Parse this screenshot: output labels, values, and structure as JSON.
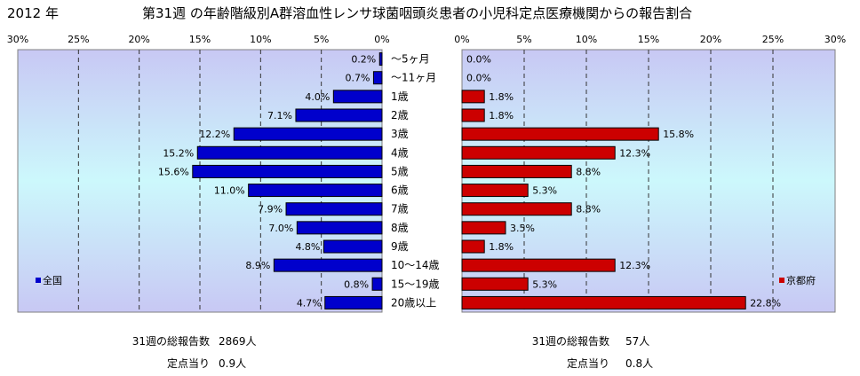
{
  "header": {
    "year": "2012 年",
    "title": "第31週 の年齢階級別A群溶血性レンサ球菌咽頭炎患者の小児科定点医療機関からの報告割合"
  },
  "chart_data": [
    {
      "type": "bar",
      "orientation": "horizontal",
      "direction": "right-to-left",
      "series": [
        {
          "name": "全国",
          "values": [
            0.2,
            0.7,
            4.0,
            7.1,
            12.2,
            15.2,
            15.6,
            11.0,
            7.9,
            7.0,
            4.8,
            8.9,
            0.8,
            4.7
          ],
          "color": "#0000cc"
        }
      ],
      "value_labels": [
        "0.2%",
        "0.7%",
        "4.0%",
        "7.1%",
        "12.2%",
        "15.2%",
        "15.6%",
        "11.0%",
        "7.9%",
        "7.0%",
        "4.8%",
        "8.9%",
        "0.8%",
        "4.7%"
      ],
      "xlim": [
        0,
        30
      ],
      "xticks": [
        "30%",
        "25%",
        "20%",
        "15%",
        "10%",
        "5%",
        "0%"
      ],
      "legend": "left",
      "grid": true
    },
    {
      "type": "bar",
      "orientation": "horizontal",
      "direction": "left-to-right",
      "series": [
        {
          "name": "京都府",
          "values": [
            0.0,
            0.0,
            1.8,
            1.8,
            15.8,
            12.3,
            8.8,
            5.3,
            8.8,
            3.5,
            1.8,
            12.3,
            5.3,
            22.8
          ],
          "color": "#cc0000"
        }
      ],
      "value_labels": [
        "0.0%",
        "0.0%",
        "1.8%",
        "1.8%",
        "15.8%",
        "12.3%",
        "8.8%",
        "5.3%",
        "8.8%",
        "3.5%",
        "1.8%",
        "12.3%",
        "5.3%",
        "22.8%"
      ],
      "xlim": [
        0,
        30
      ],
      "xticks": [
        "0%",
        "5%",
        "10%",
        "15%",
        "20%",
        "25%",
        "30%"
      ],
      "legend": "right",
      "grid": true
    }
  ],
  "categories": [
    "～5ヶ月",
    "～11ヶ月",
    "1歳",
    "2歳",
    "3歳",
    "4歳",
    "5歳",
    "6歳",
    "7歳",
    "8歳",
    "9歳",
    "10～14歳",
    "15～19歳",
    "20歳以上"
  ],
  "footer": {
    "left": {
      "total_label": "31週の総報告数",
      "total_value": "2869人",
      "per_label": "定点当り",
      "per_value": "0.9人"
    },
    "right": {
      "total_label": "31週の総報告数",
      "total_value": "57人",
      "per_label": "定点当り",
      "per_value": "0.8人"
    }
  }
}
